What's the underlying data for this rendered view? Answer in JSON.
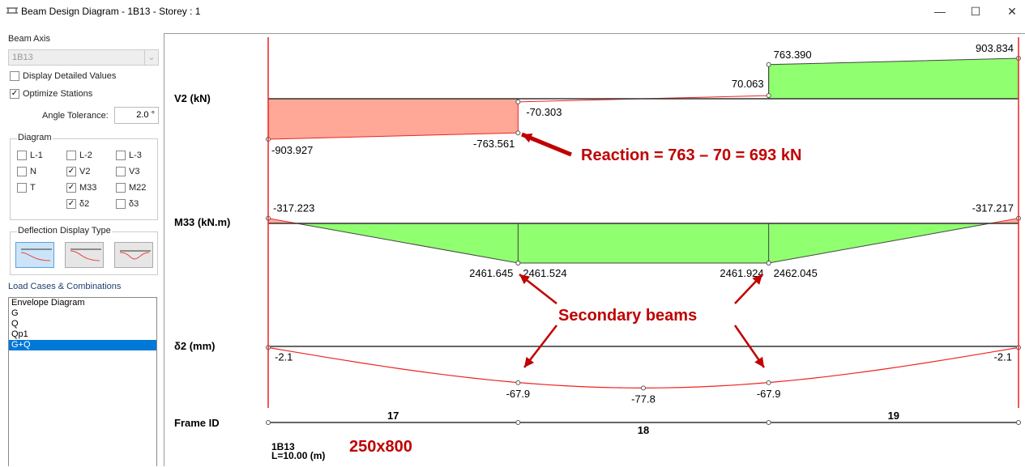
{
  "window": {
    "title": "Beam Design Diagram - 1B13 - Storey : 1",
    "minimize": "—",
    "maximize": "☐",
    "close": "✕"
  },
  "sidebar": {
    "beam_axis_label": "Beam Axis",
    "beam_axis_value": "1B13",
    "display_detailed": {
      "label": "Display Detailed Values",
      "checked": false
    },
    "optimize": {
      "label": "Optimize Stations",
      "checked": true
    },
    "angle_label": "Angle Tolerance:",
    "angle_value": "2.0 °",
    "diagram_legend": "Diagram",
    "diagram_items": [
      {
        "label": "L-1",
        "checked": false
      },
      {
        "label": "L-2",
        "checked": false
      },
      {
        "label": "L-3",
        "checked": false
      },
      {
        "label": "N",
        "checked": false
      },
      {
        "label": "V2",
        "checked": true
      },
      {
        "label": "V3",
        "checked": false
      },
      {
        "label": "T",
        "checked": false
      },
      {
        "label": "M33",
        "checked": true
      },
      {
        "label": "M22",
        "checked": false
      },
      {
        "label": "δ2",
        "checked": true
      },
      {
        "label": "δ3",
        "checked": false
      }
    ],
    "deflection_legend": "Deflection Display Type",
    "load_cases_label": "Load Cases & Combinations",
    "load_cases": [
      "Envelope Diagram",
      "G",
      "Q",
      "Qp1",
      "G+Q"
    ],
    "selected_load_case": "G+Q"
  },
  "diagram": {
    "v2_label": "V2 (kN)",
    "m33_label": "M33 (kN.m)",
    "d2_label": "δ2 (mm)",
    "frame_label": "Frame ID",
    "v2": {
      "points": [
        [
          0,
          "-903.927"
        ],
        [
          3.33,
          "-763.561"
        ],
        [
          3.33,
          "-70.303"
        ],
        [
          6.67,
          "70.063"
        ],
        [
          6.67,
          "763.390"
        ],
        [
          10,
          "903.834"
        ]
      ]
    },
    "m33": {
      "points": [
        [
          0,
          "-317.223"
        ],
        [
          3.33,
          "2461.645"
        ],
        [
          3.33,
          "2461.524"
        ],
        [
          6.67,
          "2461.924"
        ],
        [
          6.67,
          "2462.045"
        ],
        [
          10,
          "-317.217"
        ]
      ]
    },
    "d2": {
      "points": [
        [
          0,
          "-2.1"
        ],
        [
          3.33,
          "-67.9"
        ],
        [
          5,
          "-77.8"
        ],
        [
          6.67,
          "-67.9"
        ],
        [
          10,
          "-2.1"
        ]
      ]
    },
    "frames": [
      {
        "id": "17",
        "from": 0,
        "to": 3.33
      },
      {
        "id": "18",
        "from": 3.33,
        "to": 6.67
      },
      {
        "id": "19",
        "from": 6.67,
        "to": 10
      }
    ],
    "beam_name": "1B13",
    "beam_length": "L=10.00 (m)",
    "colors": {
      "negative": "#ffa898",
      "positive": "#90ff70",
      "line": "#ee2222"
    }
  },
  "annotations": {
    "reaction": "Reaction = 763 – 70 = 693 kN",
    "secondary": "Secondary beams",
    "section": "250x800",
    "color": "#c00000"
  }
}
